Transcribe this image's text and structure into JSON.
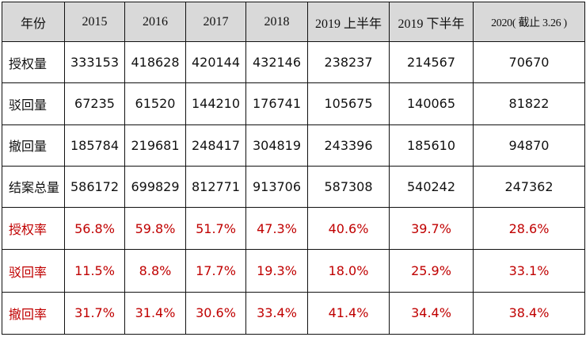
{
  "header": {
    "first": "年份",
    "columns": [
      "2015",
      "2016",
      "2017",
      "2018",
      "2019 上半年",
      "2019 下半年",
      "2020( 截止 3.26 )"
    ]
  },
  "rows": [
    {
      "label": "授权量",
      "values": [
        "333153",
        "418628",
        "420144",
        "432146",
        "238237",
        "214567",
        "70670"
      ]
    },
    {
      "label": "驳回量",
      "values": [
        "67235",
        "61520",
        "144210",
        "176741",
        "105675",
        "140065",
        "81822"
      ]
    },
    {
      "label": "撤回量",
      "values": [
        "185784",
        "219681",
        "248417",
        "304819",
        "243396",
        "185610",
        "94870"
      ]
    },
    {
      "label": "结案总量",
      "values": [
        "586172",
        "699829",
        "812771",
        "913706",
        "587308",
        "540242",
        "247362"
      ]
    },
    {
      "label": "授权率",
      "values": [
        "56.8%",
        "59.8%",
        "51.7%",
        "47.3%",
        "40.6%",
        "39.7%",
        "28.6%"
      ]
    },
    {
      "label": "驳回率",
      "values": [
        "11.5%",
        "8.8%",
        "17.7%",
        "19.3%",
        "18.0%",
        "25.9%",
        "33.1%"
      ]
    },
    {
      "label": "撤回率",
      "values": [
        "31.7%",
        "31.4%",
        "30.6%",
        "33.4%",
        "41.4%",
        "34.4%",
        "38.4%"
      ]
    }
  ],
  "colors": {
    "header_bg": "#d9d9d9",
    "rate_text": "#c00000",
    "border": "#111111"
  }
}
